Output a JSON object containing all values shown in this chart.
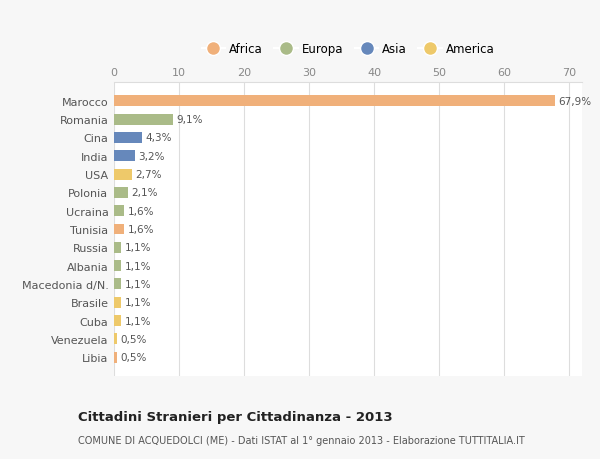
{
  "countries": [
    "Marocco",
    "Romania",
    "Cina",
    "India",
    "USA",
    "Polonia",
    "Ucraina",
    "Tunisia",
    "Russia",
    "Albania",
    "Macedonia d/N.",
    "Brasile",
    "Cuba",
    "Venezuela",
    "Libia"
  ],
  "values": [
    67.9,
    9.1,
    4.3,
    3.2,
    2.7,
    2.1,
    1.6,
    1.6,
    1.1,
    1.1,
    1.1,
    1.1,
    1.1,
    0.5,
    0.5
  ],
  "labels": [
    "67,9%",
    "9,1%",
    "4,3%",
    "3,2%",
    "2,7%",
    "2,1%",
    "1,6%",
    "1,6%",
    "1,1%",
    "1,1%",
    "1,1%",
    "1,1%",
    "1,1%",
    "0,5%",
    "0,5%"
  ],
  "colors": [
    "#F0B07A",
    "#AABB88",
    "#6688BB",
    "#6688BB",
    "#EEC96A",
    "#AABB88",
    "#AABB88",
    "#F0B07A",
    "#AABB88",
    "#AABB88",
    "#AABB88",
    "#EEC96A",
    "#EEC96A",
    "#EEC96A",
    "#F0B07A"
  ],
  "legend": [
    {
      "label": "Africa",
      "color": "#F0B07A"
    },
    {
      "label": "Europa",
      "color": "#AABB88"
    },
    {
      "label": "Asia",
      "color": "#6688BB"
    },
    {
      "label": "America",
      "color": "#EEC96A"
    }
  ],
  "xlim": [
    0,
    72
  ],
  "xticks": [
    0,
    10,
    20,
    30,
    40,
    50,
    60,
    70
  ],
  "title": "Cittadini Stranieri per Cittadinanza - 2013",
  "subtitle": "COMUNE DI ACQUEDOLCI (ME) - Dati ISTAT al 1° gennaio 2013 - Elaborazione TUTTITALIA.IT",
  "bg_color": "#F7F7F7",
  "plot_bg_color": "#FFFFFF",
  "grid_color": "#DDDDDD",
  "bar_height": 0.6
}
